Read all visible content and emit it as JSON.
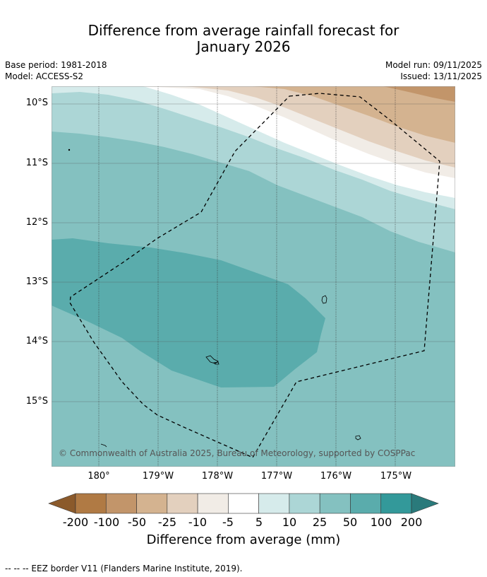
{
  "title": {
    "line1": "Difference from average rainfall forecast for",
    "line2": "January 2026"
  },
  "meta": {
    "base_period": "Base period: 1981-2018",
    "model": "Model: ACCESS-S2",
    "model_run": "Model run: 09/11/2025",
    "issued": "Issued: 13/11/2025"
  },
  "map": {
    "longitude_labels": [
      "180°",
      "179°W",
      "178°W",
      "177°W",
      "176°W",
      "175°W"
    ],
    "latitude_labels": [
      "10°S",
      "11°S",
      "12°S",
      "13°S",
      "14°S",
      "15°S"
    ],
    "copyright": "© Commonwealth of Australia 2025, Bureau of Meteorology, supported by COSPPac"
  },
  "legend": {
    "ticks": [
      "-200",
      "-100",
      "-50",
      "-25",
      "-10",
      "-5",
      "5",
      "10",
      "25",
      "50",
      "100",
      "200"
    ],
    "colors": [
      "#8b5a2b",
      "#b07a44",
      "#c2956a",
      "#d4b390",
      "#e3d0be",
      "#f1ece6",
      "#ffffff",
      "#d6ebeb",
      "#acd6d6",
      "#84c1c0",
      "#5aacac",
      "#33999a",
      "#2a7a7b"
    ],
    "label": "Difference from average (mm)"
  },
  "footer": "--  --  -- EEZ border V11 (Flanders Marine Institute, 2019)."
}
